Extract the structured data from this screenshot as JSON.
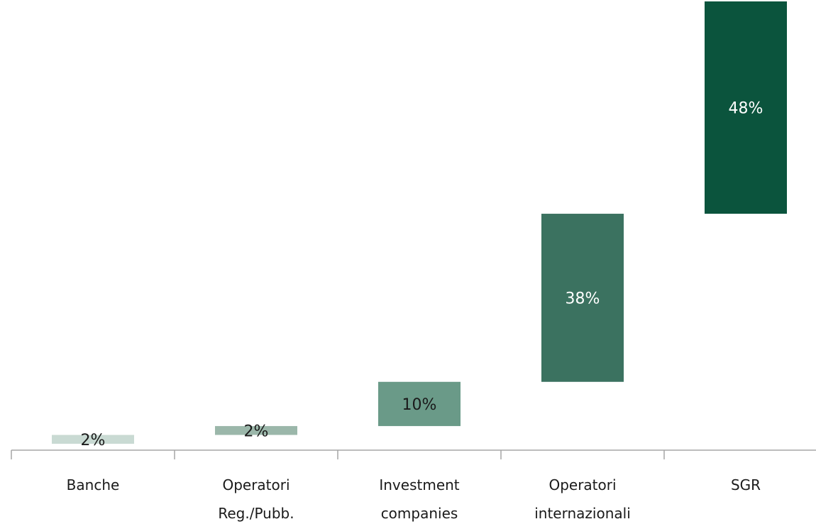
{
  "chart_data": {
    "type": "waterfall",
    "categories": [
      [
        "Banche"
      ],
      [
        "Operatori",
        "Reg./Pubb."
      ],
      [
        "Investment",
        "companies"
      ],
      [
        "Operatori",
        "internazionali"
      ],
      [
        "SGR"
      ]
    ],
    "values": [
      2,
      2,
      10,
      38,
      48
    ],
    "value_labels": [
      "2%",
      "2%",
      "10%",
      "38%",
      "48%"
    ],
    "unit": "%",
    "colors": [
      "#c9dad3",
      "#9bb7aa",
      "#6a9a88",
      "#3b7260",
      "#0b543d"
    ],
    "label_colors": [
      "#1a1a1a",
      "#1a1a1a",
      "#1a1a1a",
      "#ffffff",
      "#ffffff"
    ],
    "ylim": [
      0,
      100
    ],
    "grid": false,
    "legend": "none"
  }
}
